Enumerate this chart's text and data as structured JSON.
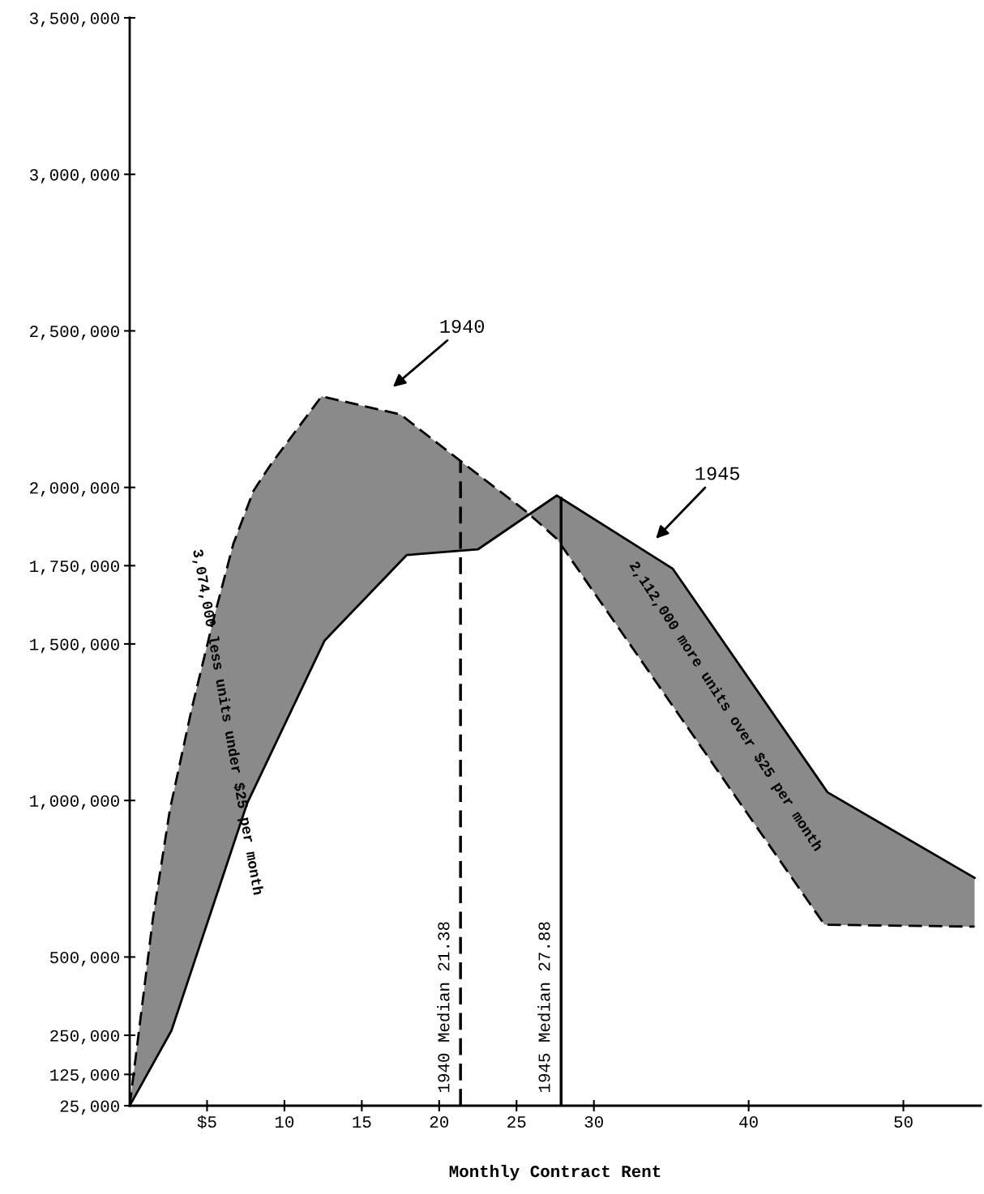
{
  "chart_data": {
    "type": "line",
    "xlabel": "Monthly Contract Rent",
    "xlim": [
      0,
      55
    ],
    "ylim": [
      25000,
      3500000
    ],
    "xticks": [
      {
        "value": 5,
        "label": "$5"
      },
      10,
      15,
      20,
      25,
      30,
      40,
      50
    ],
    "yticks": [
      {
        "value": 25000,
        "label": "25,000"
      },
      {
        "value": 125000,
        "label": "125,000"
      },
      {
        "value": 250000,
        "label": "250,000"
      },
      {
        "value": 500000,
        "label": "500,000"
      },
      {
        "value": 1000000,
        "label": "1,000,000"
      },
      {
        "value": 1500000,
        "label": "1,500,000"
      },
      {
        "value": 1750000,
        "label": "1,750,000"
      },
      {
        "value": 2000000,
        "label": "2,000,000"
      },
      {
        "value": 2500000,
        "label": "2,500,000"
      },
      {
        "value": 3000000,
        "label": "3,000,000"
      },
      {
        "value": 3500000,
        "label": "3,500,000"
      }
    ],
    "grid": false,
    "marker": "none",
    "series": [
      {
        "color": "#000000",
        "line_style": "dashed",
        "x": [
          0,
          1.5,
          2.6,
          4.0,
          5.4,
          6.7,
          8.0,
          9.1,
          12.4,
          17.5,
          21.7,
          25.6,
          27.6,
          44.9,
          54.6
        ],
        "values": [
          25000,
          623000,
          971000,
          1291000,
          1576000,
          1820000,
          1989000,
          2072000,
          2291000,
          2233000,
          2072000,
          1924000,
          1836000,
          603000,
          597000
        ]
      },
      {
        "color": "#000000",
        "line_style": "solid",
        "x": [
          0,
          2.7,
          7.6,
          12.6,
          17.9,
          22.5,
          27.6,
          35.1,
          45.1,
          54.6
        ],
        "values": [
          25000,
          265000,
          992000,
          1511000,
          1784000,
          1802000,
          1974000,
          1740000,
          1026000,
          753000
        ]
      }
    ],
    "ref_lines": [
      {
        "axis": "x",
        "value": 21.38,
        "label": "1940 Median 21.38",
        "line_style": "dashed",
        "color": "#000000"
      },
      {
        "axis": "x",
        "value": 27.88,
        "label": "1945 Median 27.88",
        "line_style": "solid",
        "color": "#000000"
      }
    ],
    "annotations": [
      "1940",
      "1945",
      "3,074,000 less units under $25 per month",
      "2,112,000 more units over $25 per month"
    ]
  }
}
